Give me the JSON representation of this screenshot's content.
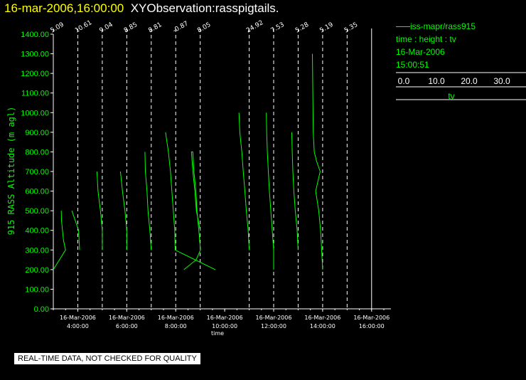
{
  "header": {
    "datetime": "16-mar-2006,16:00:00",
    "observation": "XYObservation:rasspigtails."
  },
  "legend": {
    "line_label": "iss-mapr/rass915",
    "variables": "time : height : tv",
    "date": "16-Mar-2006",
    "time": "15:00:51",
    "tv_ticks": [
      "0.0",
      "10.0",
      "20.0",
      "30.0"
    ],
    "tv_label": "tv"
  },
  "notice": "REAL-TIME DATA, NOT CHECKED FOR QUALITY",
  "colors": {
    "title": "#ffff00",
    "trace": "#00ff00",
    "axis": "#ffffff",
    "background": "#000000"
  },
  "chart_data": {
    "type": "line",
    "xlabel": "time",
    "ylabel": "915 RASS Altitude (m agl)",
    "ylim": [
      0,
      1400
    ],
    "y_ticks": [
      "0.00",
      "100.00",
      "200.00",
      "300.00",
      "400.00",
      "500.00",
      "600.00",
      "700.00",
      "800.00",
      "900.00",
      "1000.00",
      "1100.00",
      "1200.00",
      "1300.00",
      "1400.00"
    ],
    "x_range_hours": [
      3.0,
      16.5
    ],
    "x_ticks": [
      {
        "hour": 4,
        "date": "16-Mar-2006",
        "time": "4:00:00"
      },
      {
        "hour": 6,
        "date": "16-Mar-2006",
        "time": "6:00:00"
      },
      {
        "hour": 8,
        "date": "16-Mar-2006",
        "time": "8:00:00"
      },
      {
        "hour": 10,
        "date": "16-Mar-2006",
        "time": "10:00:00"
      },
      {
        "hour": 12,
        "date": "16-Mar-2006",
        "time": "12:00:00"
      },
      {
        "hour": 14,
        "date": "16-Mar-2006",
        "time": "14:00:00"
      },
      {
        "hour": 16,
        "date": "16-Mar-2006",
        "time": "16:00:00"
      }
    ],
    "profile_scale_hours_per_tv": 0.0833,
    "profiles": [
      {
        "hour": 3.0,
        "label": "5.09",
        "points": [
          [
            0.0,
            200
          ],
          [
            6.0,
            300
          ],
          [
            5.0,
            350
          ],
          [
            4.0,
            450
          ],
          [
            3.9,
            500
          ]
        ]
      },
      {
        "hour": 4.0,
        "label": "10.61",
        "points": [
          [
            0.9,
            300
          ],
          [
            0.4,
            400
          ],
          [
            -2.9,
            500
          ]
        ]
      },
      {
        "hour": 5.0,
        "label": "9.04",
        "points": [
          [
            0.0,
            300
          ],
          [
            0.0,
            400
          ],
          [
            -0.9,
            500
          ],
          [
            -2.1,
            600
          ],
          [
            -2.6,
            700
          ]
        ]
      },
      {
        "hour": 6.0,
        "label": "8.85",
        "points": [
          [
            0.0,
            300
          ],
          [
            0.0,
            400
          ],
          [
            -0.9,
            500
          ],
          [
            -2.1,
            600
          ],
          [
            -3.1,
            700
          ]
        ]
      },
      {
        "hour": 7.0,
        "label": "8.81",
        "points": [
          [
            0.0,
            300
          ],
          [
            -0.7,
            400
          ],
          [
            -1.6,
            500
          ],
          [
            -2.1,
            600
          ],
          [
            -2.9,
            700
          ],
          [
            -3.1,
            800
          ]
        ]
      },
      {
        "hour": 8.0,
        "label": "-0.87",
        "points": [
          [
            -5.0,
            900
          ],
          [
            -3.6,
            800
          ],
          [
            -2.6,
            700
          ],
          [
            -1.9,
            600
          ],
          [
            -1.2,
            500
          ],
          [
            -0.5,
            400
          ],
          [
            -0.3,
            300
          ],
          [
            19.4,
            200
          ]
        ]
      },
      {
        "hour": 9.0,
        "label": "8.05",
        "points": [
          [
            -8.0,
            200
          ],
          [
            -2.0,
            250
          ],
          [
            0.1,
            300
          ],
          [
            -0.7,
            400
          ],
          [
            -1.6,
            500
          ],
          [
            -2.1,
            600
          ],
          [
            -3.1,
            700
          ],
          [
            -3.6,
            800
          ],
          [
            -4.3,
            800
          ],
          [
            -3.6,
            700
          ],
          [
            -2.6,
            600
          ],
          [
            -1.9,
            500
          ],
          [
            0.0,
            400
          ]
        ]
      },
      {
        "hour": 11.0,
        "label": "24.92",
        "points": [
          [
            0.0,
            300
          ],
          [
            -0.5,
            400
          ],
          [
            -1.4,
            500
          ],
          [
            -2.1,
            600
          ],
          [
            -2.9,
            700
          ],
          [
            -3.6,
            800
          ],
          [
            -4.6,
            900
          ],
          [
            -5.0,
            1000
          ]
        ]
      },
      {
        "hour": 12.0,
        "label": "7.53",
        "points": [
          [
            0.0,
            200
          ],
          [
            0.0,
            300
          ],
          [
            -0.7,
            400
          ],
          [
            -1.4,
            500
          ],
          [
            -2.1,
            600
          ],
          [
            -2.6,
            700
          ],
          [
            -3.1,
            800
          ],
          [
            -3.4,
            900
          ],
          [
            -3.6,
            1000
          ]
        ]
      },
      {
        "hour": 13.0,
        "label": "5.28",
        "points": [
          [
            0.0,
            300
          ],
          [
            -0.5,
            400
          ],
          [
            -1.4,
            500
          ],
          [
            -2.1,
            600
          ],
          [
            -2.6,
            700
          ],
          [
            -2.9,
            800
          ],
          [
            -3.1,
            900
          ]
        ]
      },
      {
        "hour": 14.0,
        "label": "5.19",
        "points": [
          [
            0.0,
            200
          ],
          [
            -0.5,
            300
          ],
          [
            -1.0,
            400
          ],
          [
            -1.9,
            500
          ],
          [
            -3.4,
            600
          ],
          [
            -1.2,
            700
          ],
          [
            -2.9,
            750
          ],
          [
            -4.1,
            800
          ],
          [
            -4.6,
            900
          ],
          [
            -5.0,
            1300
          ]
        ]
      },
      {
        "hour": 15.0,
        "label": "5.35",
        "points": []
      },
      {
        "hour": 16.0,
        "label": "",
        "points": []
      }
    ]
  }
}
